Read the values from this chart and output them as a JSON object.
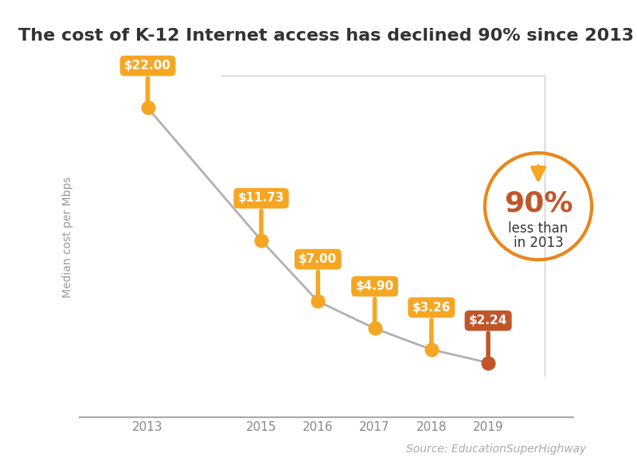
{
  "title": "The cost of K-12 Internet access has declined 90% since 2013",
  "years": [
    2013,
    2015,
    2016,
    2017,
    2018,
    2019
  ],
  "values": [
    22.0,
    11.73,
    7.0,
    4.9,
    3.26,
    2.24
  ],
  "labels": [
    "$22.00",
    "$11.73",
    "$7.00",
    "$4.90",
    "$3.26",
    "$2.24"
  ],
  "ylabel": "Median cost per Mbps",
  "source": "Source: EducationSuperHighway",
  "line_color": "#b0b0b0",
  "marker_color_main": "#f5a623",
  "marker_color_last": "#c0562a",
  "label_bg_main": "#f5a623",
  "label_bg_last": "#c0562a",
  "circle_color": "#e8871a",
  "pct_text": "90%",
  "pct_subtext1": "less than",
  "pct_subtext2": "in 2013",
  "pct_color": "#c0562a",
  "arrow_color": "#f5a623",
  "subtext_color": "#333333",
  "title_fontsize": 16,
  "label_fontsize": 11,
  "source_fontsize": 10,
  "ylabel_fontsize": 10,
  "background_color": "#ffffff",
  "xlim": [
    2011.8,
    2020.5
  ],
  "ylim": [
    -2,
    26
  ]
}
